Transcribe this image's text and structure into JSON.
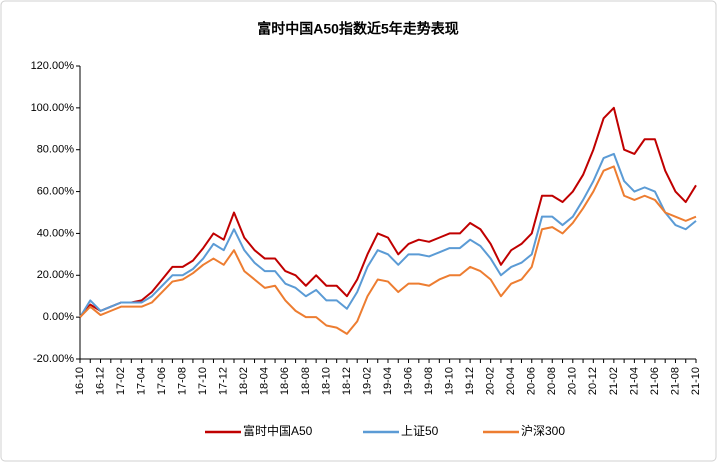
{
  "chart_data": {
    "type": "line",
    "title": "富时中国A50指数近5年走势表现",
    "categories": [
      "16-10",
      null,
      "16-12",
      null,
      "17-02",
      null,
      "17-04",
      null,
      "17-06",
      null,
      "17-08",
      null,
      "17-10",
      null,
      "17-12",
      null,
      "18-02",
      null,
      "18-04",
      null,
      "18-06",
      null,
      "18-08",
      null,
      "18-10",
      null,
      "18-12",
      null,
      "19-02",
      null,
      "19-04",
      null,
      "19-06",
      null,
      "19-08",
      null,
      "19-10",
      null,
      "19-12",
      null,
      "20-02",
      null,
      "20-04",
      null,
      "20-06",
      null,
      "20-08",
      null,
      "20-10",
      null,
      "20-12",
      null,
      "21-02",
      null,
      "21-04",
      null,
      "21-06",
      null,
      "21-08",
      null,
      "21-10"
    ],
    "series": [
      {
        "name": "富时中国A50",
        "color": "#c00000",
        "values": [
          0,
          6,
          3,
          5,
          7,
          7,
          8,
          12,
          18,
          24,
          24,
          27,
          33,
          40,
          37,
          50,
          38,
          32,
          28,
          28,
          22,
          20,
          15,
          20,
          15,
          15,
          10,
          18,
          30,
          40,
          38,
          30,
          35,
          37,
          36,
          38,
          40,
          40,
          45,
          42,
          35,
          25,
          32,
          35,
          40,
          58,
          58,
          55,
          60,
          68,
          80,
          95,
          100,
          80,
          78,
          85,
          85,
          70,
          60,
          55,
          63
        ]
      },
      {
        "name": "上证50",
        "color": "#5b9bd5",
        "values": [
          0,
          8,
          3,
          5,
          7,
          7,
          7,
          10,
          15,
          20,
          20,
          23,
          28,
          35,
          32,
          42,
          32,
          26,
          22,
          22,
          16,
          14,
          10,
          13,
          8,
          8,
          4,
          12,
          24,
          32,
          30,
          25,
          30,
          30,
          29,
          31,
          33,
          33,
          37,
          34,
          28,
          20,
          24,
          26,
          30,
          48,
          48,
          44,
          48,
          56,
          65,
          76,
          78,
          65,
          60,
          62,
          60,
          50,
          44,
          42,
          46
        ]
      },
      {
        "name": "沪深300",
        "color": "#ed7d31",
        "values": [
          0,
          5,
          1,
          3,
          5,
          5,
          5,
          7,
          12,
          17,
          18,
          21,
          25,
          28,
          25,
          32,
          22,
          18,
          14,
          15,
          8,
          3,
          0,
          0,
          -4,
          -5,
          -8,
          -2,
          10,
          18,
          17,
          12,
          16,
          16,
          15,
          18,
          20,
          20,
          24,
          22,
          18,
          10,
          16,
          18,
          24,
          42,
          43,
          40,
          45,
          52,
          60,
          70,
          72,
          58,
          56,
          58,
          56,
          50,
          48,
          46,
          48
        ]
      }
    ],
    "ylim": [
      -20,
      120
    ],
    "yticks": [
      {
        "value": -20,
        "label": "-20.00%"
      },
      {
        "value": 0,
        "label": "0.00%"
      },
      {
        "value": 20,
        "label": "20.00%"
      },
      {
        "value": 40,
        "label": "40.00%"
      },
      {
        "value": 60,
        "label": "60.00%"
      },
      {
        "value": 80,
        "label": "80.00%"
      },
      {
        "value": 100,
        "label": "100.00%"
      },
      {
        "value": 120,
        "label": "120.00%"
      }
    ],
    "legend": "bottom"
  }
}
